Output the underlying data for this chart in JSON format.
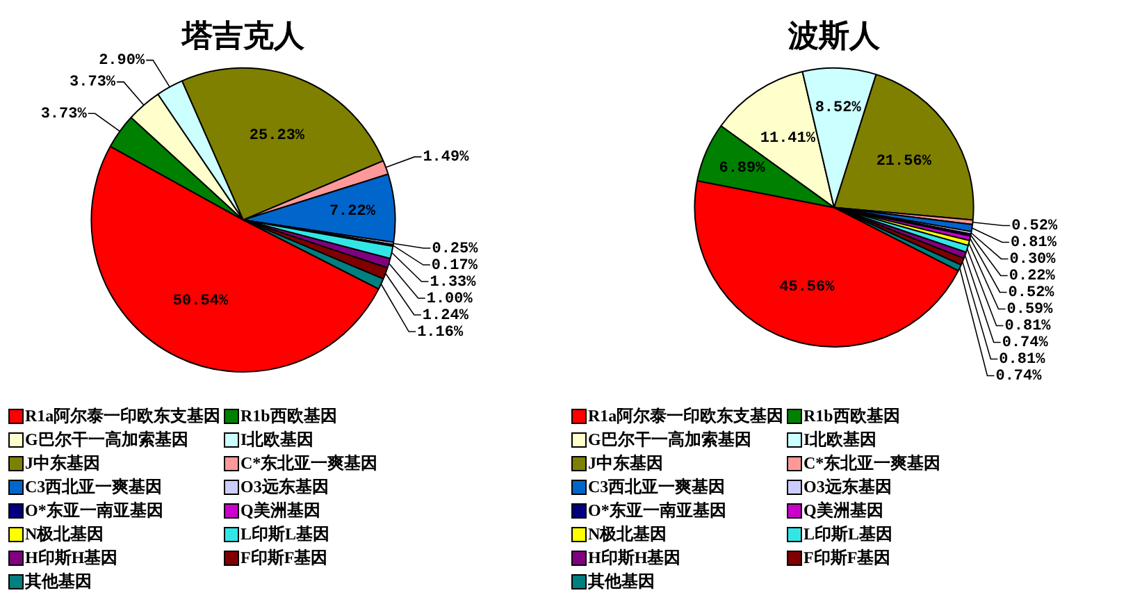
{
  "chart_data": [
    {
      "type": "pie",
      "title": "塔吉克人",
      "legend": "bottom",
      "categories": [
        "R1a阿尔泰一印欧东支基因",
        "R1b西欧基因",
        "G巴尔干一高加索基因",
        "I北欧基因",
        "J中东基因",
        "C*东北亚一爽基因",
        "C3西北亚一爽基因",
        "O3远东基因",
        "O*东亚一南亚基因",
        "Q美洲基因",
        "N极北基因",
        "L印斯L基因",
        "H印斯H基因",
        "F印斯F基因",
        "其他基因"
      ],
      "values": [
        50.54,
        3.73,
        3.73,
        2.9,
        25.23,
        1.49,
        7.22,
        0.25,
        0.17,
        0,
        0,
        1.33,
        1.0,
        1.24,
        1.16
      ],
      "value_labels": [
        "50.54%",
        "3.73%",
        "3.73%",
        "2.90%",
        "25.23%",
        "1.49%",
        "7.22%",
        "0.25%",
        "0.17%",
        null,
        null,
        "1.33%",
        "1.00%",
        "1.24%",
        "1.16%"
      ],
      "colors": [
        "#ff0000",
        "#008000",
        "#ffffcc",
        "#ccffff",
        "#808000",
        "#ff9999",
        "#0066cc",
        "#ccccff",
        "#000080",
        "#cc00cc",
        "#ffff00",
        "#33e6e6",
        "#800080",
        "#800000",
        "#008080"
      ]
    },
    {
      "type": "pie",
      "title": "波斯人",
      "legend": "bottom",
      "categories": [
        "R1a阿尔泰一印欧东支基因",
        "R1b西欧基因",
        "G巴尔干一高加索基因",
        "I北欧基因",
        "J中东基因",
        "C*东北亚一爽基因",
        "C3西北亚一爽基因",
        "O3远东基因",
        "O*东亚一南亚基因",
        "Q美洲基因",
        "N极北基因",
        "L印斯L基因",
        "H印斯H基因",
        "F印斯F基因",
        "其他基因"
      ],
      "values": [
        45.56,
        6.89,
        11.41,
        8.52,
        21.56,
        0.52,
        0.81,
        0.3,
        0.22,
        0.52,
        0.59,
        0.81,
        0.74,
        0.81,
        0.74
      ],
      "value_labels": [
        "45.56%",
        "6.89%",
        "11.41%",
        "8.52%",
        "21.56%",
        "0.52%",
        "0.81%",
        "0.30%",
        "0.22%",
        "0.52%",
        "0.59%",
        "0.81%",
        "0.74%",
        "0.81%",
        "0.74%"
      ],
      "colors": [
        "#ff0000",
        "#008000",
        "#ffffcc",
        "#ccffff",
        "#808000",
        "#ff9999",
        "#0066cc",
        "#ccccff",
        "#000080",
        "#cc00cc",
        "#ffff00",
        "#33e6e6",
        "#800080",
        "#800000",
        "#008080"
      ]
    }
  ]
}
